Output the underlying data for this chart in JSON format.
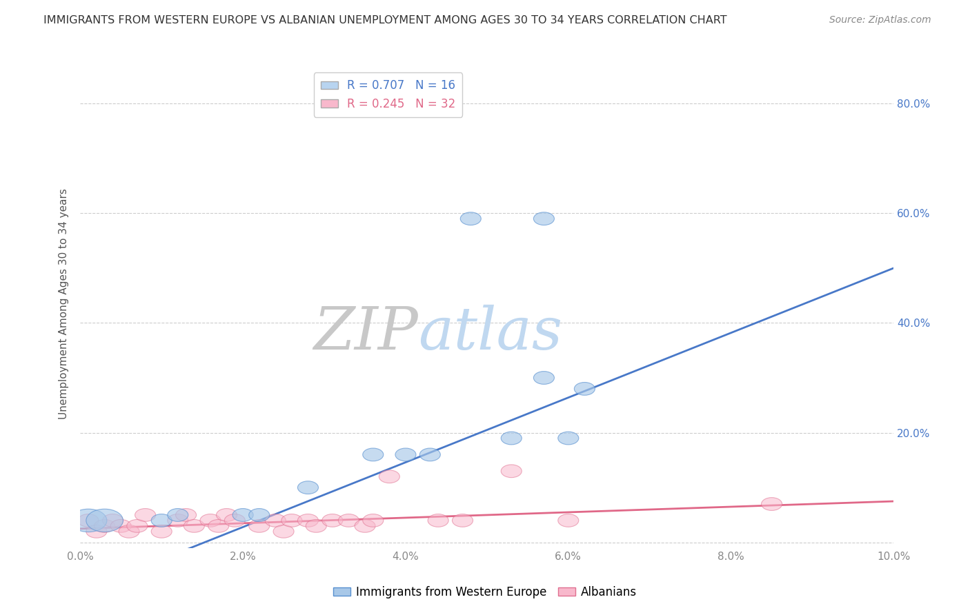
{
  "title": "IMMIGRANTS FROM WESTERN EUROPE VS ALBANIAN UNEMPLOYMENT AMONG AGES 30 TO 34 YEARS CORRELATION CHART",
  "source": "Source: ZipAtlas.com",
  "ylabel": "Unemployment Among Ages 30 to 34 years",
  "xlim": [
    0.0,
    0.1
  ],
  "ylim": [
    -0.01,
    0.88
  ],
  "xticks": [
    0.0,
    0.02,
    0.04,
    0.06,
    0.08,
    0.1
  ],
  "yticks": [
    0.0,
    0.2,
    0.4,
    0.6,
    0.8
  ],
  "xticklabels": [
    "0.0%",
    "2.0%",
    "4.0%",
    "6.0%",
    "8.0%",
    "10.0%"
  ],
  "yticklabels": [
    "",
    "20.0%",
    "40.0%",
    "60.0%",
    "80.0%"
  ],
  "blue_dots": [
    [
      0.001,
      0.04
    ],
    [
      0.003,
      0.04
    ],
    [
      0.01,
      0.04
    ],
    [
      0.012,
      0.05
    ],
    [
      0.02,
      0.05
    ],
    [
      0.022,
      0.05
    ],
    [
      0.028,
      0.1
    ],
    [
      0.036,
      0.16
    ],
    [
      0.04,
      0.16
    ],
    [
      0.043,
      0.16
    ],
    [
      0.048,
      0.59
    ],
    [
      0.053,
      0.19
    ],
    [
      0.057,
      0.3
    ],
    [
      0.062,
      0.28
    ],
    [
      0.057,
      0.59
    ],
    [
      0.06,
      0.19
    ]
  ],
  "pink_dots": [
    [
      0.001,
      0.04
    ],
    [
      0.002,
      0.02
    ],
    [
      0.003,
      0.03
    ],
    [
      0.004,
      0.04
    ],
    [
      0.005,
      0.03
    ],
    [
      0.006,
      0.02
    ],
    [
      0.007,
      0.03
    ],
    [
      0.008,
      0.05
    ],
    [
      0.01,
      0.02
    ],
    [
      0.012,
      0.04
    ],
    [
      0.013,
      0.05
    ],
    [
      0.014,
      0.03
    ],
    [
      0.016,
      0.04
    ],
    [
      0.017,
      0.03
    ],
    [
      0.018,
      0.05
    ],
    [
      0.019,
      0.04
    ],
    [
      0.022,
      0.03
    ],
    [
      0.024,
      0.04
    ],
    [
      0.025,
      0.02
    ],
    [
      0.026,
      0.04
    ],
    [
      0.028,
      0.04
    ],
    [
      0.029,
      0.03
    ],
    [
      0.031,
      0.04
    ],
    [
      0.033,
      0.04
    ],
    [
      0.035,
      0.03
    ],
    [
      0.036,
      0.04
    ],
    [
      0.038,
      0.12
    ],
    [
      0.044,
      0.04
    ],
    [
      0.047,
      0.04
    ],
    [
      0.053,
      0.13
    ],
    [
      0.06,
      0.04
    ],
    [
      0.085,
      0.07
    ]
  ],
  "blue_line_x": [
    0.0,
    0.1
  ],
  "blue_line_y": [
    -0.09,
    0.5
  ],
  "pink_line_x": [
    0.0,
    0.1
  ],
  "pink_line_y": [
    0.025,
    0.075
  ],
  "legend_entries": [
    {
      "label": "R = 0.707   N = 16",
      "color": "#b8d4f0"
    },
    {
      "label": "R = 0.245   N = 32",
      "color": "#f8b8cc"
    }
  ],
  "blue_dot_color": "#a8c8e8",
  "blue_dot_edge": "#5890d0",
  "pink_dot_color": "#f8b8cc",
  "pink_dot_edge": "#e07090",
  "blue_line_color": "#4878c8",
  "pink_line_color": "#e06888",
  "watermark_zip": "ZIP",
  "watermark_atlas": "atlas",
  "background_color": "#ffffff",
  "grid_color": "#cccccc",
  "tick_color": "#888888",
  "right_tick_color": "#4878c8",
  "title_color": "#333333",
  "ylabel_color": "#555555"
}
